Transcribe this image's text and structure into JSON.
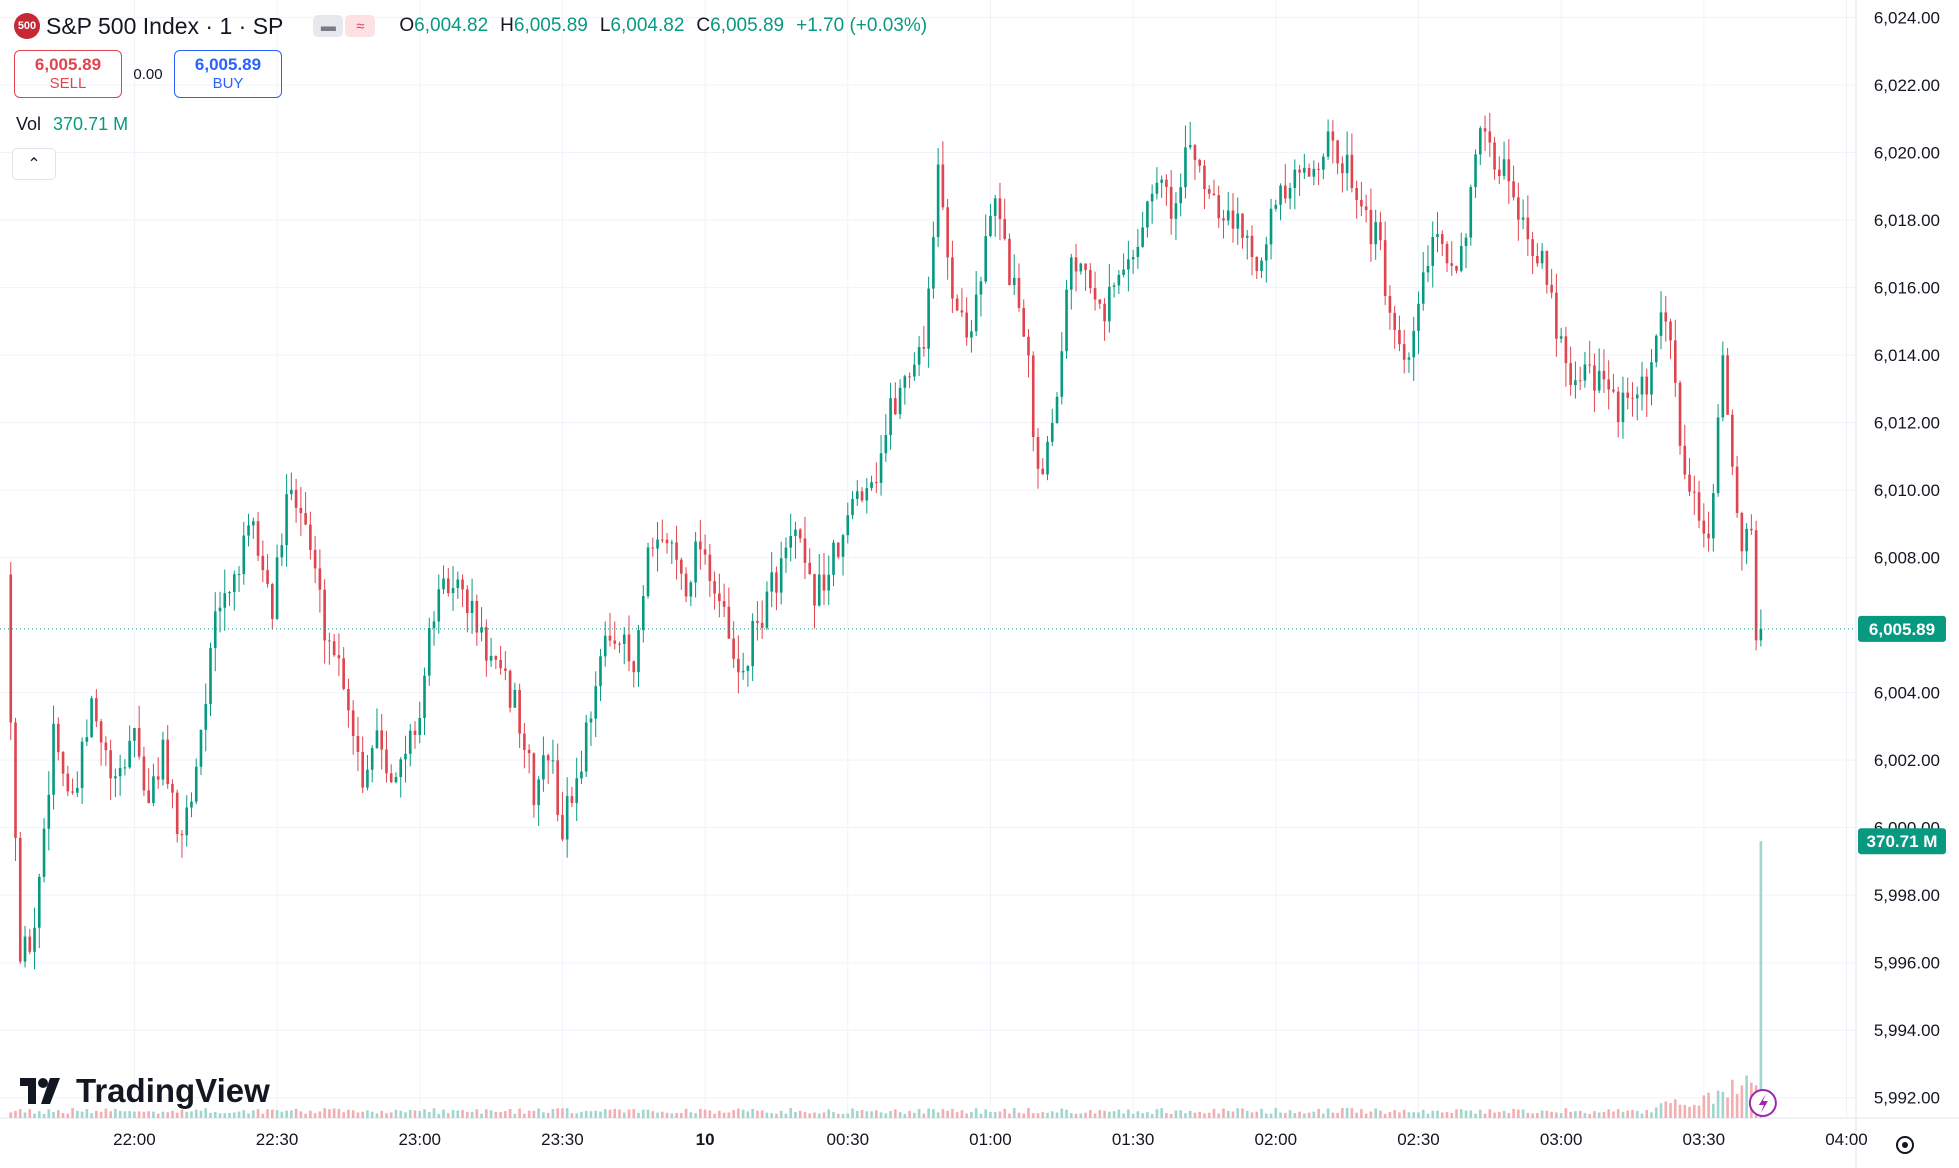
{
  "header": {
    "logo_text": "500",
    "title": "S&P 500 Index · 1 · SP",
    "tag_icons": [
      "minus-icon",
      "wave-icon"
    ],
    "ohlc": {
      "open_label": "O",
      "open": "6,004.82",
      "high_label": "H",
      "high": "6,005.89",
      "low_label": "L",
      "low": "6,004.82",
      "close_label": "C",
      "close": "6,005.89",
      "change": "+1.70 (+0.03%)"
    }
  },
  "trade": {
    "sell_price": "6,005.89",
    "sell_label": "SELL",
    "spread": "0.00",
    "buy_price": "6,005.89",
    "buy_label": "BUY"
  },
  "volume": {
    "label": "Vol",
    "value": "370.71 M"
  },
  "branding": {
    "name": "TradingView"
  },
  "colors": {
    "up": "#089981",
    "down": "#e0444f",
    "vol_up": "#9fd6cd",
    "vol_down": "#f4aeb2",
    "badge": "#089981"
  },
  "chart_data": {
    "type": "candlestick",
    "interval_minutes": 1,
    "y_axis": {
      "ticks": [
        5992,
        5994,
        5996,
        5998,
        6000,
        6002,
        6004,
        6006,
        6008,
        6010,
        6012,
        6014,
        6016,
        6018,
        6020,
        6022,
        6024
      ],
      "tick_labels": [
        "5,992.00",
        "5,994.00",
        "5,996.00",
        "5,998.00",
        "6,000.00",
        "6,002.00",
        "6,004.00",
        "",
        "6,008.00",
        "6,010.00",
        "6,012.00",
        "6,014.00",
        "6,016.00",
        "6,018.00",
        "6,020.00",
        "6,022.00",
        "6,024.00"
      ],
      "range": [
        5991.4,
        6024.4
      ]
    },
    "x_axis": {
      "ticks": [
        "22:00",
        "22:30",
        "23:00",
        "23:30",
        "10",
        "00:30",
        "01:00",
        "01:30",
        "02:00",
        "02:30",
        "03:00",
        "03:30",
        "04:00"
      ],
      "range": [
        "21:33",
        "04:02"
      ]
    },
    "last_price": 6005.89,
    "last_price_label": "6,005.89",
    "last_volume_label": "370.71 M",
    "price_anchors": [
      [
        "21:33",
        6007.5
      ],
      [
        "21:36",
        5996.0
      ],
      [
        "21:39",
        5997.0
      ],
      [
        "21:43",
        6003.0
      ],
      [
        "21:47",
        6000.5
      ],
      [
        "21:51",
        6003.5
      ],
      [
        "21:56",
        6001.0
      ],
      [
        "22:00",
        6003.0
      ],
      [
        "22:03",
        6000.5
      ],
      [
        "22:06",
        6002.5
      ],
      [
        "22:09",
        5999.5
      ],
      [
        "22:12",
        6001.0
      ],
      [
        "22:17",
        6006.0
      ],
      [
        "22:21",
        6007.5
      ],
      [
        "22:25",
        6008.8
      ],
      [
        "22:29",
        6006.5
      ],
      [
        "22:33",
        6010.5
      ],
      [
        "22:36",
        6009.0
      ],
      [
        "22:40",
        6006.0
      ],
      [
        "22:44",
        6004.5
      ],
      [
        "22:48",
        6001.5
      ],
      [
        "22:51",
        6003.0
      ],
      [
        "22:55",
        6001.3
      ],
      [
        "23:00",
        6003.5
      ],
      [
        "23:03",
        6006.5
      ],
      [
        "23:07",
        6007.3
      ],
      [
        "23:10",
        6006.7
      ],
      [
        "23:13",
        6005.6
      ],
      [
        "23:17",
        6004.3
      ],
      [
        "23:20",
        6003.8
      ],
      [
        "23:24",
        6001.0
      ],
      [
        "23:27",
        6002.3
      ],
      [
        "23:30",
        6000.0
      ],
      [
        "23:34",
        6002.0
      ],
      [
        "23:37",
        6004.5
      ],
      [
        "23:41",
        6006.0
      ],
      [
        "23:45",
        6004.5
      ],
      [
        "23:48",
        6007.8
      ],
      [
        "23:52",
        6008.6
      ],
      [
        "23:56",
        6007.3
      ],
      [
        "23:59",
        6008.6
      ],
      [
        "00:03",
        6006.7
      ],
      [
        "00:07",
        6004.3
      ],
      [
        "00:11",
        6006.0
      ],
      [
        "00:15",
        6007.5
      ],
      [
        "00:19",
        6008.6
      ],
      [
        "00:22",
        6007.0
      ],
      [
        "00:25",
        6007.3
      ],
      [
        "00:29",
        6008.5
      ],
      [
        "00:32",
        6010.0
      ],
      [
        "00:36",
        6010.6
      ],
      [
        "00:39",
        6012.3
      ],
      [
        "00:42",
        6013.3
      ],
      [
        "00:46",
        6014.5
      ],
      [
        "00:49",
        6019.3
      ],
      [
        "00:52",
        6016.0
      ],
      [
        "00:55",
        6014.5
      ],
      [
        "00:58",
        6016.5
      ],
      [
        "01:01",
        6018.5
      ],
      [
        "01:04",
        6016.5
      ],
      [
        "01:07",
        6015.0
      ],
      [
        "01:10",
        6010.5
      ],
      [
        "01:13",
        6012.0
      ],
      [
        "01:17",
        6017.0
      ],
      [
        "01:20",
        6016.8
      ],
      [
        "01:24",
        6015.5
      ],
      [
        "01:28",
        6016.5
      ],
      [
        "01:31",
        6017.5
      ],
      [
        "01:35",
        6019.2
      ],
      [
        "01:39",
        6018.3
      ],
      [
        "01:42",
        6020.3
      ],
      [
        "01:45",
        6019.2
      ],
      [
        "01:49",
        6018.4
      ],
      [
        "01:53",
        6017.6
      ],
      [
        "01:56",
        6017.0
      ],
      [
        "02:00",
        6018.4
      ],
      [
        "02:04",
        6019.0
      ],
      [
        "02:07",
        6019.4
      ],
      [
        "02:10",
        6020.3
      ],
      [
        "02:13",
        6019.8
      ],
      [
        "02:16",
        6019.4
      ],
      [
        "02:19",
        6018.2
      ],
      [
        "02:22",
        6017.0
      ],
      [
        "02:25",
        6014.2
      ],
      [
        "02:28",
        6013.5
      ],
      [
        "02:31",
        6016.5
      ],
      [
        "02:34",
        6017.2
      ],
      [
        "02:37",
        6016.6
      ],
      [
        "02:40",
        6017.8
      ],
      [
        "02:43",
        6020.3
      ],
      [
        "02:46",
        6019.7
      ],
      [
        "02:49",
        6019.4
      ],
      [
        "02:52",
        6018.0
      ],
      [
        "02:55",
        6017.1
      ],
      [
        "02:58",
        6015.5
      ],
      [
        "03:02",
        6013.5
      ],
      [
        "03:06",
        6013.7
      ],
      [
        "03:10",
        6012.7
      ],
      [
        "03:14",
        6012.4
      ],
      [
        "03:18",
        6013.0
      ],
      [
        "03:22",
        6015.3
      ],
      [
        "03:25",
        6011.5
      ],
      [
        "03:28",
        6009.5
      ],
      [
        "03:31",
        6008.6
      ],
      [
        "03:34",
        6013.5
      ],
      [
        "03:36",
        6011.0
      ],
      [
        "03:38",
        6008.2
      ],
      [
        "03:40",
        6008.5
      ],
      [
        "03:41",
        6006.0
      ],
      [
        "03:42",
        6005.89
      ]
    ]
  }
}
